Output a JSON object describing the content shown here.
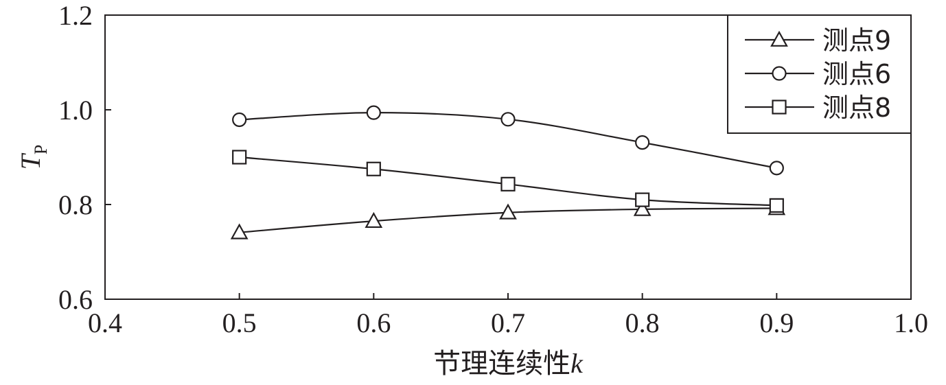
{
  "chart_data": {
    "type": "line",
    "x": [
      0.5,
      0.6,
      0.7,
      0.8,
      0.9
    ],
    "series": [
      {
        "name": "测点9",
        "marker": "triangle",
        "values": [
          0.741,
          0.765,
          0.783,
          0.79,
          0.792
        ]
      },
      {
        "name": "测点6",
        "marker": "circle",
        "values": [
          0.979,
          0.994,
          0.98,
          0.931,
          0.877
        ]
      },
      {
        "name": "测点8",
        "marker": "square",
        "values": [
          0.9,
          0.875,
          0.843,
          0.81,
          0.798
        ]
      }
    ],
    "xlabel": "节理连续性",
    "xlabel_var": "k",
    "ylabel_main": "T",
    "ylabel_sub": "P",
    "xlim": [
      0.4,
      1.0
    ],
    "ylim": [
      0.6,
      1.2
    ],
    "xticks": [
      "0.4",
      "0.5",
      "0.6",
      "0.7",
      "0.8",
      "0.9",
      "1.0"
    ],
    "yticks": [
      "0.6",
      "0.8",
      "1.0",
      "1.2"
    ],
    "grid": false,
    "legend_position": "top-right",
    "line_color": "#231f20"
  }
}
